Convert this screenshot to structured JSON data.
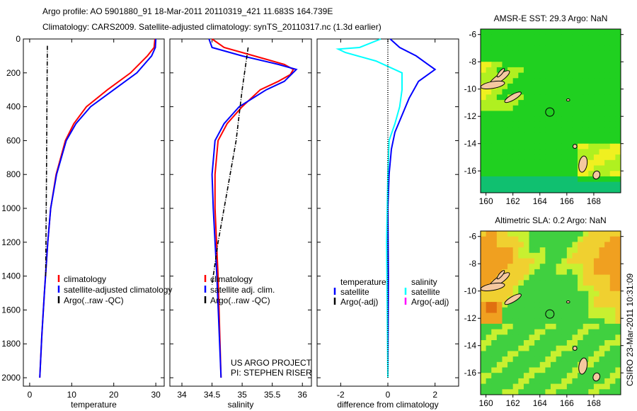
{
  "title": {
    "line1": "Argo profile: AO 5901880_91 18-Mar-2011 20110319_421 11.683S 164.739E",
    "line2": "Climatology: CARS2009. Satellite-adjusted climatology: synTS_20110317.nc (1.3d earlier)"
  },
  "credit": "CSIRO 23-Mar-2011 10:31:09",
  "project": {
    "line1": "US ARGO PROJECT",
    "line2": "PI: STEPHEN RISER"
  },
  "colors": {
    "clim": "#ff0000",
    "sat": "#0000ff",
    "argo": "#000000",
    "sal_sat": "#00ffff",
    "sal_argo": "#ff00ff"
  },
  "chart_data": [
    {
      "type": "line",
      "xlabel": "temperature",
      "ylabel": "",
      "xlim": [
        -1.5,
        32
      ],
      "ylim": [
        2050,
        0
      ],
      "xticks": [
        0,
        10,
        20,
        30
      ],
      "yticks": [
        0,
        200,
        400,
        600,
        800,
        1000,
        1200,
        1400,
        1600,
        1800,
        2000
      ],
      "legend": [
        "climatology",
        "satellite-adjusted climatology",
        "Argo(..raw -QC)"
      ],
      "series": [
        {
          "name": "climatology",
          "color": "#ff0000",
          "style": "solid",
          "points": [
            [
              29.8,
              0
            ],
            [
              29.6,
              50
            ],
            [
              28,
              100
            ],
            [
              24,
              200
            ],
            [
              18.5,
              300
            ],
            [
              13.5,
              400
            ],
            [
              10.5,
              500
            ],
            [
              8.5,
              600
            ],
            [
              6.3,
              800
            ],
            [
              5,
              1000
            ],
            [
              4.3,
              1200
            ],
            [
              3.5,
              1500
            ],
            [
              2.9,
              1750
            ],
            [
              2.4,
              2000
            ]
          ]
        },
        {
          "name": "satellite-adjusted climatology",
          "color": "#0000ff",
          "style": "solid",
          "points": [
            [
              30,
              0
            ],
            [
              29.9,
              50
            ],
            [
              29,
              100
            ],
            [
              25.5,
              200
            ],
            [
              20,
              300
            ],
            [
              14.5,
              400
            ],
            [
              11,
              500
            ],
            [
              8.7,
              600
            ],
            [
              6.4,
              800
            ],
            [
              5,
              1000
            ],
            [
              4.3,
              1200
            ],
            [
              3.5,
              1500
            ],
            [
              2.9,
              1750
            ],
            [
              2.4,
              2000
            ]
          ]
        },
        {
          "name": "Argo(..raw -QC)",
          "color": "#000000",
          "style": "dashdot",
          "points": [
            [
              4.2,
              40
            ],
            [
              4.1,
              400
            ],
            [
              4.0,
              800
            ],
            [
              3.9,
              1100
            ],
            [
              3.8,
              1400
            ]
          ]
        }
      ]
    },
    {
      "type": "line",
      "xlabel": "salinity",
      "ylabel": "",
      "xlim": [
        33.8,
        36.15
      ],
      "ylim": [
        2050,
        0
      ],
      "xticks": [
        34,
        34.5,
        35,
        35.5,
        36
      ],
      "legend": [
        "climatology",
        "satellite adj. clim.",
        "Argo(..raw -QC)"
      ],
      "series": [
        {
          "name": "climatology",
          "color": "#ff0000",
          "style": "solid",
          "points": [
            [
              34.5,
              0
            ],
            [
              34.7,
              50
            ],
            [
              35.2,
              100
            ],
            [
              35.7,
              150
            ],
            [
              35.85,
              180
            ],
            [
              35.8,
              210
            ],
            [
              35.6,
              250
            ],
            [
              35.3,
              300
            ],
            [
              35.0,
              400
            ],
            [
              34.75,
              500
            ],
            [
              34.6,
              600
            ],
            [
              34.55,
              800
            ],
            [
              34.55,
              1000
            ],
            [
              34.6,
              1400
            ],
            [
              34.65,
              2000
            ]
          ]
        },
        {
          "name": "satellite adj. clim.",
          "color": "#0000ff",
          "style": "solid",
          "points": [
            [
              34.45,
              0
            ],
            [
              34.5,
              50
            ],
            [
              35.0,
              100
            ],
            [
              35.6,
              150
            ],
            [
              35.9,
              180
            ],
            [
              35.7,
              250
            ],
            [
              35.4,
              300
            ],
            [
              34.95,
              400
            ],
            [
              34.7,
              500
            ],
            [
              34.55,
              600
            ],
            [
              34.5,
              800
            ],
            [
              34.52,
              1000
            ],
            [
              34.58,
              1400
            ],
            [
              34.65,
              2000
            ]
          ]
        },
        {
          "name": "Argo(..raw -QC)",
          "color": "#000000",
          "style": "dashdot",
          "points": [
            [
              35.1,
              50
            ],
            [
              35.0,
              300
            ],
            [
              34.9,
              600
            ],
            [
              34.75,
              900
            ],
            [
              34.6,
              1200
            ],
            [
              34.5,
              1450
            ]
          ]
        }
      ]
    },
    {
      "type": "line",
      "xlabel": "difference from climatology",
      "ylabel": "",
      "xlim": [
        -3,
        3
      ],
      "ylim": [
        2050,
        0
      ],
      "xticks": [
        -2,
        0,
        2
      ],
      "legend": {
        "temperature_header": "temperature",
        "salinity_header": "salinity",
        "temp_items": [
          "satellite",
          "Argo(-adj)"
        ],
        "sal_items": [
          "satellite",
          "Argo(-adj)"
        ]
      },
      "series": [
        {
          "name": "temperature satellite",
          "color": "#0000ff",
          "style": "solid",
          "points": [
            [
              0.1,
              0
            ],
            [
              0.5,
              50
            ],
            [
              1.2,
              100
            ],
            [
              1.7,
              150
            ],
            [
              2.0,
              180
            ],
            [
              1.3,
              250
            ],
            [
              0.9,
              350
            ],
            [
              0.6,
              450
            ],
            [
              0.3,
              550
            ],
            [
              0.15,
              650
            ],
            [
              0.05,
              800
            ],
            [
              0,
              1000
            ],
            [
              0.02,
              1400
            ],
            [
              0,
              2000
            ]
          ]
        },
        {
          "name": "salinity satellite",
          "color": "#00ffff",
          "style": "solid",
          "points": [
            [
              -0.3,
              0
            ],
            [
              -1.2,
              50
            ],
            [
              -2.1,
              60
            ],
            [
              -1.8,
              80
            ],
            [
              -0.5,
              130
            ],
            [
              0.6,
              200
            ],
            [
              0.6,
              300
            ],
            [
              0.5,
              400
            ],
            [
              0.3,
              500
            ],
            [
              0.05,
              600
            ],
            [
              0,
              800
            ],
            [
              -0.05,
              1200
            ],
            [
              0,
              2000
            ]
          ]
        },
        {
          "name": "zero line",
          "color": "#000000",
          "style": "dotted",
          "points": [
            [
              0,
              0
            ],
            [
              0,
              2000
            ]
          ]
        }
      ]
    },
    {
      "type": "heatmap",
      "title": "AMSR-E SST: 29.3 Argo: NaN",
      "xlim": [
        159.6,
        170
      ],
      "ylim": [
        -17.6,
        -5.6
      ],
      "xticks": [
        160,
        162,
        164,
        166,
        168
      ],
      "yticks": [
        -6,
        -8,
        -10,
        -12,
        -14,
        -16
      ],
      "marker": [
        164.739,
        -11.683
      ],
      "palette": "sst"
    },
    {
      "type": "heatmap",
      "title": "Altimetric SLA: 0.2 Argo: NaN",
      "xlim": [
        159.6,
        170
      ],
      "ylim": [
        -17.6,
        -5.6
      ],
      "xticks": [
        160,
        162,
        164,
        166,
        168
      ],
      "yticks": [
        -6,
        -8,
        -10,
        -12,
        -14,
        -16
      ],
      "marker": [
        164.739,
        -11.683
      ],
      "palette": "sla"
    }
  ]
}
